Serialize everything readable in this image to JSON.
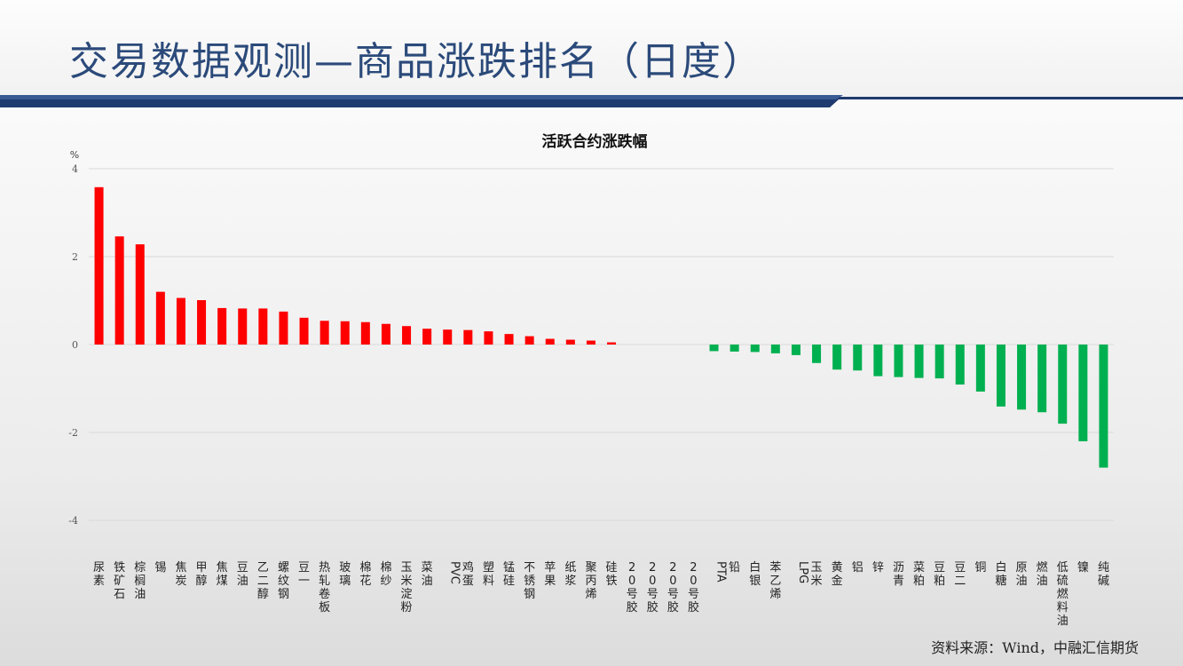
{
  "slide": {
    "title": "交易数据观测—商品涨跌排名（日度）",
    "source": "资料来源：Wind，中融汇信期货"
  },
  "colors": {
    "title": "#2b4a7a",
    "band": "#1f3a6e",
    "band_accent": "#3a5a94",
    "up": "#ff0000",
    "down": "#00b050",
    "grid": "#d9d9d9"
  },
  "chart_data": {
    "type": "bar",
    "title": "活跃合约涨跌幅",
    "ylabel": "%",
    "xlabel": "",
    "ylim": [
      -4,
      4
    ],
    "yticks": [
      4,
      2,
      0,
      -2,
      -4
    ],
    "grid": true,
    "categories": [
      "尿素",
      "铁矿石",
      "棕榈油",
      "锡",
      "焦炭",
      "甲醇",
      "焦煤",
      "豆油",
      "乙二醇",
      "螺纹钢",
      "豆一",
      "热轧卷板",
      "玻璃",
      "棉花",
      "棉纱",
      "玉米淀粉",
      "菜油",
      "PVC",
      "鸡蛋",
      "塑料",
      "锰硅",
      "不锈钢",
      "苹果",
      "纸浆",
      "聚丙烯",
      "硅铁",
      "20号胶",
      "20号胶",
      "20号胶",
      "20号胶",
      "PTA",
      "铅",
      "白银",
      "苯乙烯",
      "LPG",
      "玉米",
      "黄金",
      "铝",
      "锌",
      "沥青",
      "菜粕",
      "豆粕",
      "豆二",
      "铜",
      "白糖",
      "原油",
      "燃油",
      "低硫燃料油",
      "镍",
      "纯碱"
    ],
    "values": [
      3.58,
      2.46,
      2.28,
      1.2,
      1.06,
      1.01,
      0.83,
      0.82,
      0.82,
      0.75,
      0.61,
      0.54,
      0.53,
      0.51,
      0.47,
      0.42,
      0.36,
      0.34,
      0.33,
      0.3,
      0.24,
      0.19,
      0.13,
      0.11,
      0.09,
      0.05,
      0,
      0,
      0,
      0,
      -0.15,
      -0.16,
      -0.17,
      -0.2,
      -0.24,
      -0.42,
      -0.57,
      -0.59,
      -0.72,
      -0.74,
      -0.76,
      -0.77,
      -0.91,
      -1.07,
      -1.41,
      -1.48,
      -1.54,
      -1.8,
      -2.2,
      -2.8
    ]
  }
}
